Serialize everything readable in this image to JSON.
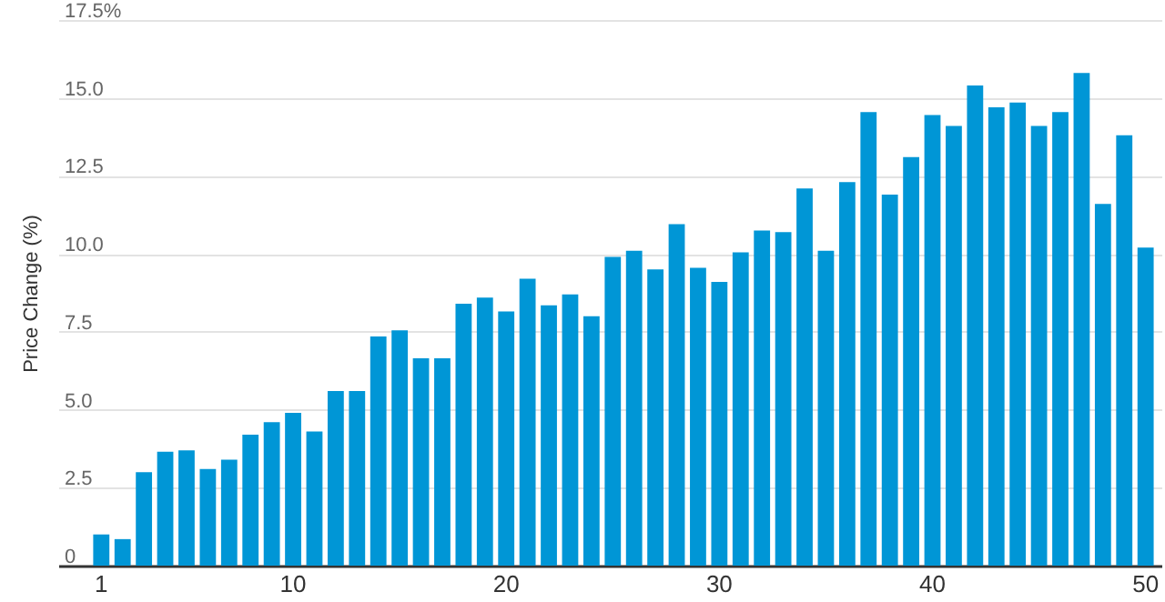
{
  "chart_data": {
    "type": "bar",
    "ylabel": "Price Change (%)",
    "categories": [
      "1",
      null,
      null,
      null,
      null,
      null,
      null,
      null,
      null,
      "10",
      null,
      null,
      null,
      null,
      null,
      null,
      null,
      null,
      null,
      "20",
      null,
      null,
      null,
      null,
      null,
      null,
      null,
      null,
      null,
      "30",
      null,
      null,
      null,
      null,
      null,
      null,
      null,
      null,
      null,
      "40",
      null,
      null,
      null,
      null,
      null,
      null,
      null,
      null,
      null,
      "50"
    ],
    "values": [
      1.0,
      0.85,
      3.0,
      3.65,
      3.7,
      3.1,
      3.4,
      4.2,
      4.6,
      4.9,
      4.3,
      5.6,
      5.6,
      7.35,
      7.55,
      6.65,
      6.65,
      8.4,
      8.6,
      8.15,
      9.2,
      8.35,
      8.7,
      8.0,
      9.9,
      10.1,
      9.5,
      10.95,
      9.55,
      9.1,
      10.05,
      10.75,
      10.7,
      12.1,
      10.1,
      12.3,
      14.55,
      11.9,
      13.1,
      14.45,
      14.1,
      15.4,
      14.7,
      14.85,
      14.1,
      14.55,
      15.8,
      11.6,
      13.8,
      10.2
    ],
    "color": "#0096d6",
    "ylim": [
      0,
      17.5
    ],
    "yticks": [
      0,
      2.5,
      {
        "value": 5,
        "label": "5.0"
      },
      7.5,
      {
        "value": 10,
        "label": "10.0"
      },
      12.5,
      {
        "value": 15,
        "label": "15.0"
      },
      {
        "value": 17.5,
        "label": "17.5%"
      }
    ],
    "grid": "y"
  }
}
